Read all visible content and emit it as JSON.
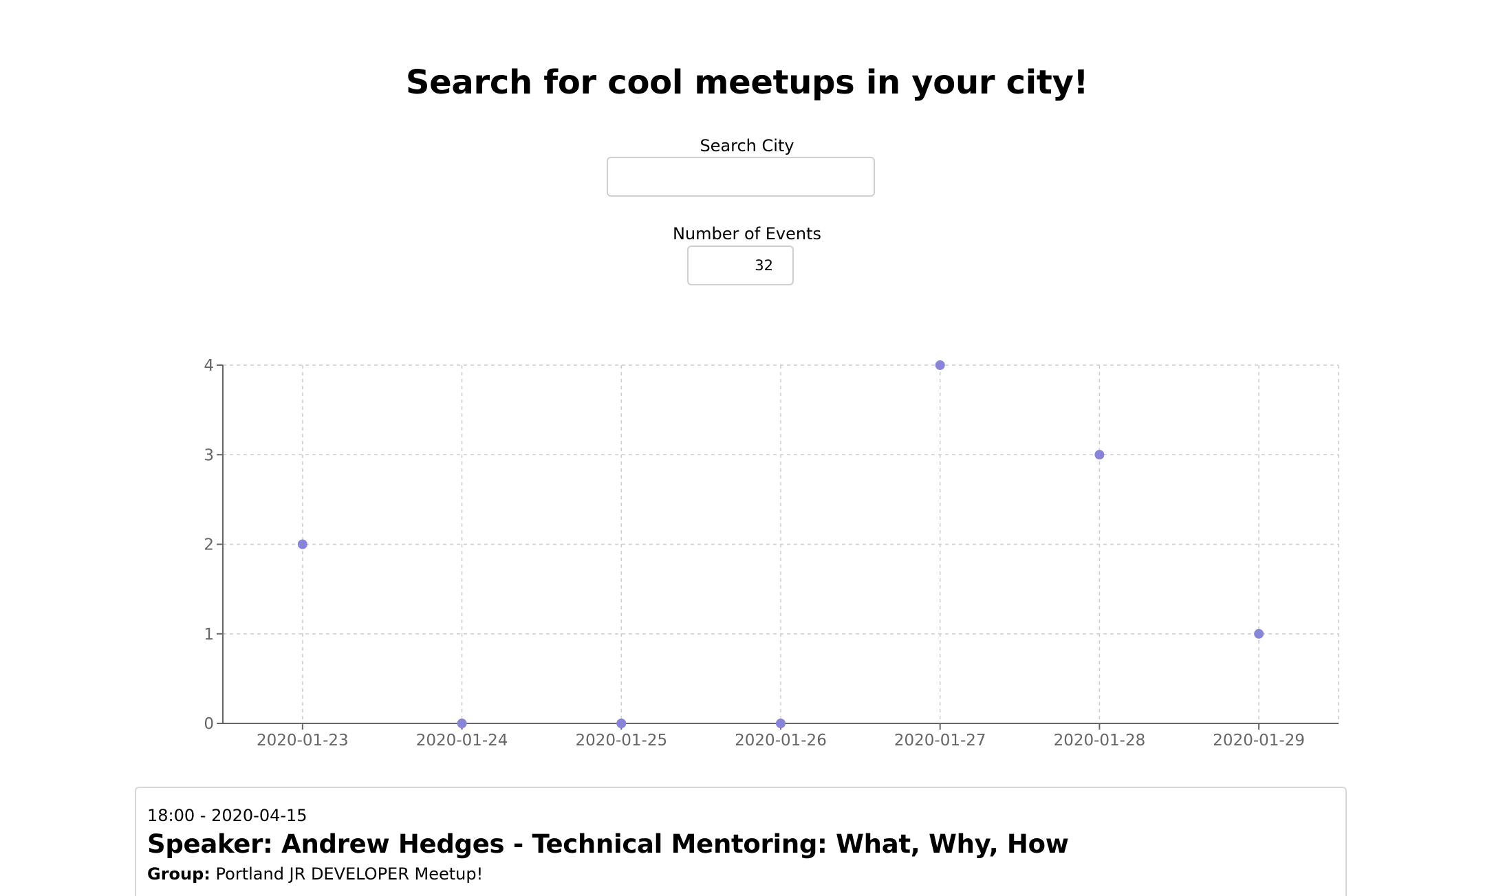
{
  "header": {
    "title": "Search for cool meetups in your city!"
  },
  "search": {
    "city_label": "Search City",
    "city_value": "",
    "events_label": "Number of Events",
    "events_value": "32"
  },
  "chart_data": {
    "type": "scatter",
    "title": "",
    "xlabel": "",
    "ylabel": "",
    "categories": [
      "2020-01-23",
      "2020-01-24",
      "2020-01-25",
      "2020-01-26",
      "2020-01-27",
      "2020-01-28",
      "2020-01-29"
    ],
    "values": [
      2,
      0,
      0,
      0,
      4,
      3,
      1
    ],
    "yticks": [
      0,
      1,
      2,
      3,
      4
    ],
    "ylim": [
      0,
      4
    ],
    "grid": true,
    "colors": {
      "point": "#8884d8",
      "grid": "#cccccc",
      "axis": "#666666"
    }
  },
  "events": [
    {
      "time": "18:00 - 2020-04-15",
      "name": "Speaker: Andrew Hedges - Technical Mentoring: What, Why, How",
      "group_label": "Group:",
      "group": "Portland JR DEVELOPER Meetup!"
    }
  ]
}
